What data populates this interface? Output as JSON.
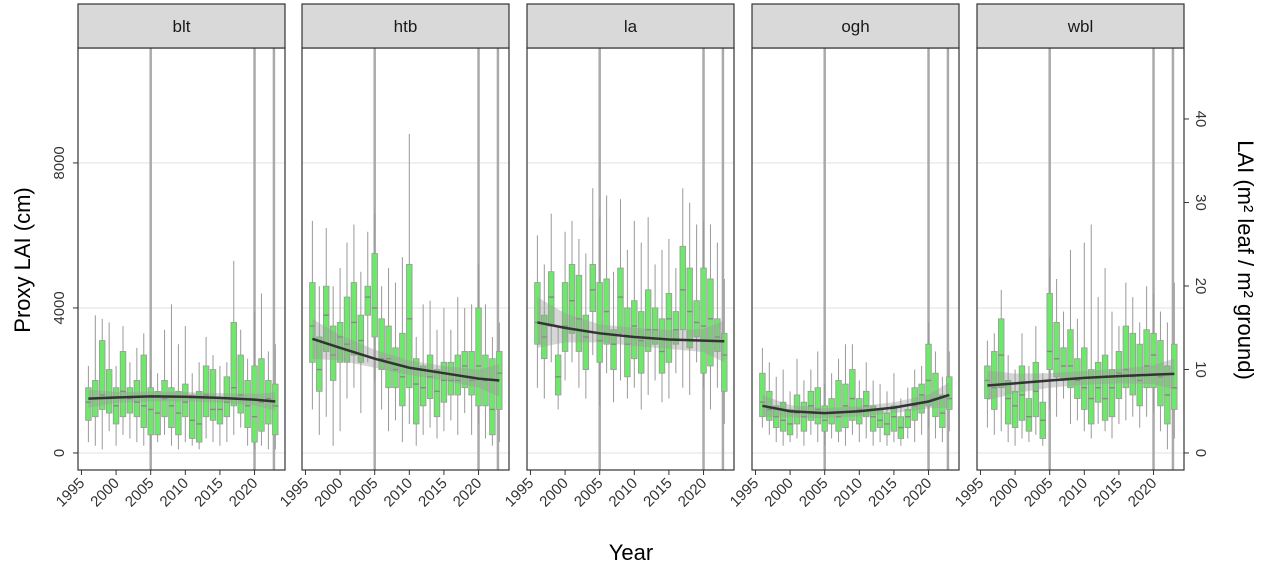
{
  "chart_data": {
    "type": "box",
    "xlabel": "Year",
    "ylabel": "Proxy LAI (cm)",
    "y2label": "LAI (m² leaf / m² ground)",
    "x": [
      1996,
      1997,
      1998,
      1999,
      2000,
      2001,
      2002,
      2003,
      2004,
      2005,
      2006,
      2007,
      2008,
      2009,
      2010,
      2011,
      2012,
      2013,
      2014,
      2015,
      2016,
      2017,
      2018,
      2019,
      2020,
      2021,
      2022,
      2023
    ],
    "xlim": [
      1994.5,
      2024.4
    ],
    "xticks": [
      1995,
      2000,
      2005,
      2010,
      2015,
      2020
    ],
    "ylim": [
      -470,
      11170
    ],
    "yticks": [
      0,
      4000,
      8000
    ],
    "y2lim": [
      -2.04,
      48.5
    ],
    "y2ticks": [
      0,
      10,
      20,
      30,
      40
    ],
    "vlines": [
      2005,
      2020,
      2022.8
    ],
    "grid": true,
    "box_color": "#6ee86a",
    "trend_x": [
      1996,
      2000,
      2005,
      2010,
      2015,
      2020,
      2023
    ],
    "facets": [
      {
        "title": "blt",
        "boxes": [
          [
            300,
            900,
            1400,
            1800,
            2400
          ],
          [
            200,
            1000,
            1500,
            2000,
            3800
          ],
          [
            100,
            1200,
            1600,
            3100,
            3700
          ],
          [
            600,
            1100,
            1500,
            2300,
            3600
          ],
          [
            200,
            800,
            1300,
            1800,
            2400
          ],
          [
            500,
            1000,
            1700,
            2800,
            3500
          ],
          [
            400,
            1100,
            1500,
            1800,
            2500
          ],
          [
            300,
            1000,
            1400,
            2000,
            2900
          ],
          [
            200,
            700,
            1300,
            2700,
            3300
          ],
          [
            100,
            500,
            1200,
            1800,
            2300
          ],
          [
            300,
            500,
            1100,
            1700,
            2200
          ],
          [
            500,
            1000,
            1500,
            2000,
            3400
          ],
          [
            200,
            700,
            1300,
            1800,
            4100
          ],
          [
            100,
            500,
            1100,
            1700,
            3000
          ],
          [
            300,
            1000,
            1400,
            1900,
            3500
          ],
          [
            200,
            400,
            900,
            1600,
            2200
          ],
          [
            100,
            300,
            800,
            1700,
            2500
          ],
          [
            400,
            1000,
            1600,
            2400,
            3200
          ],
          [
            300,
            900,
            1200,
            2300,
            2700
          ],
          [
            200,
            800,
            1200,
            1500,
            2400
          ],
          [
            300,
            1000,
            1400,
            2100,
            2500
          ],
          [
            500,
            1300,
            1800,
            3600,
            5300
          ],
          [
            700,
            1100,
            1600,
            2700,
            3400
          ],
          [
            200,
            700,
            1300,
            2000,
            2600
          ],
          [
            100,
            300,
            1000,
            2400,
            3900
          ],
          [
            200,
            600,
            1400,
            2600,
            4400
          ],
          [
            100,
            800,
            1500,
            2000,
            2800
          ],
          [
            100,
            500,
            1300,
            1900,
            3000
          ]
        ],
        "trend": [
          1500,
          1530,
          1560,
          1550,
          1520,
          1470,
          1420
        ],
        "trend_lower": [
          1250,
          1380,
          1420,
          1420,
          1390,
          1310,
          1170
        ],
        "trend_upper": [
          1750,
          1680,
          1700,
          1680,
          1650,
          1630,
          1670
        ]
      },
      {
        "title": "htb",
        "boxes": [
          [
            1200,
            2500,
            3500,
            4700,
            6400
          ],
          [
            500,
            1700,
            2300,
            3200,
            4600
          ],
          [
            1000,
            2800,
            3800,
            4600,
            6200
          ],
          [
            200,
            2000,
            2700,
            3500,
            4600
          ],
          [
            600,
            2500,
            3200,
            3600,
            5100
          ],
          [
            1500,
            2500,
            3000,
            4300,
            5800
          ],
          [
            1800,
            2700,
            3600,
            4700,
            6300
          ],
          [
            1100,
            2500,
            3100,
            3800,
            5000
          ],
          [
            2500,
            3800,
            4300,
            4600,
            6100
          ],
          [
            2000,
            3200,
            4000,
            5500,
            6600
          ],
          [
            1200,
            2300,
            2600,
            3700,
            4600
          ],
          [
            600,
            1800,
            2600,
            3500,
            5100
          ],
          [
            900,
            1800,
            2300,
            2900,
            4700
          ],
          [
            300,
            1300,
            2100,
            3300,
            5400
          ],
          [
            800,
            1800,
            3700,
            5200,
            8800
          ],
          [
            200,
            800,
            1900,
            2600,
            3200
          ],
          [
            500,
            1300,
            1800,
            2400,
            4100
          ],
          [
            700,
            1500,
            2100,
            2700,
            4200
          ],
          [
            400,
            1000,
            1700,
            2300,
            3400
          ],
          [
            600,
            1400,
            2000,
            2500,
            4000
          ],
          [
            900,
            1600,
            2000,
            2500,
            3400
          ],
          [
            500,
            1600,
            2000,
            2700,
            4300
          ],
          [
            1100,
            1800,
            2400,
            2800,
            4000
          ],
          [
            500,
            1600,
            2000,
            2800,
            4100
          ],
          [
            800,
            1300,
            2400,
            4000,
            5200
          ],
          [
            400,
            1300,
            2000,
            2700,
            4100
          ],
          [
            200,
            500,
            1200,
            2600,
            3200
          ],
          [
            300,
            1200,
            2200,
            2800,
            3600
          ]
        ],
        "trend": [
          3150,
          2900,
          2600,
          2350,
          2200,
          2050,
          2000
        ],
        "trend_lower": [
          2600,
          2550,
          2350,
          2150,
          2000,
          1800,
          1550
        ],
        "trend_upper": [
          3700,
          3250,
          2850,
          2550,
          2400,
          2300,
          2450
        ]
      },
      {
        "title": "la",
        "boxes": [
          [
            1800,
            3000,
            3600,
            4700,
            6000
          ],
          [
            1500,
            2600,
            3200,
            3800,
            5200
          ],
          [
            2500,
            3500,
            4300,
            5000,
            6600
          ],
          [
            1200,
            1600,
            2100,
            2700,
            3500
          ],
          [
            2000,
            2800,
            3500,
            4700,
            6100
          ],
          [
            2500,
            3300,
            4200,
            5200,
            6400
          ],
          [
            1800,
            2800,
            3700,
            4900,
            5900
          ],
          [
            1500,
            2300,
            3200,
            3800,
            5500
          ],
          [
            2700,
            3900,
            4500,
            5200,
            7300
          ],
          [
            1300,
            2500,
            3100,
            4700,
            6500
          ],
          [
            2200,
            3000,
            3900,
            4800,
            7100
          ],
          [
            1400,
            2300,
            3000,
            3400,
            5000
          ],
          [
            2000,
            3300,
            4300,
            5100,
            7000
          ],
          [
            1500,
            2100,
            3000,
            4000,
            5600
          ],
          [
            1800,
            2600,
            3500,
            4200,
            6400
          ],
          [
            1200,
            2200,
            3100,
            3900,
            5800
          ],
          [
            1600,
            2800,
            3400,
            4500,
            6500
          ],
          [
            2000,
            3000,
            3400,
            4000,
            5200
          ],
          [
            1400,
            2200,
            2800,
            3700,
            5600
          ],
          [
            1500,
            2500,
            3700,
            4400,
            5900
          ],
          [
            2200,
            3000,
            3400,
            3900,
            5100
          ],
          [
            1800,
            3400,
            4500,
            5700,
            7300
          ],
          [
            1600,
            2900,
            3900,
            5100,
            6900
          ],
          [
            2500,
            3200,
            3600,
            4200,
            6300
          ],
          [
            1800,
            2200,
            3500,
            5100,
            6400
          ],
          [
            1200,
            2400,
            3700,
            4800,
            6300
          ],
          [
            1800,
            2800,
            3200,
            3700,
            5800
          ],
          [
            800,
            1700,
            2700,
            3300,
            4800
          ]
        ],
        "trend": [
          3600,
          3450,
          3300,
          3200,
          3130,
          3100,
          3080
        ],
        "trend_lower": [
          2900,
          3050,
          3050,
          2950,
          2870,
          2780,
          2500
        ],
        "trend_upper": [
          4300,
          3850,
          3550,
          3450,
          3390,
          3420,
          3660
        ]
      },
      {
        "title": "ogh",
        "boxes": [
          [
            700,
            1000,
            1400,
            2200,
            2900
          ],
          [
            500,
            900,
            1200,
            1700,
            2500
          ],
          [
            300,
            700,
            1000,
            1300,
            2100
          ],
          [
            200,
            600,
            900,
            1400,
            2300
          ],
          [
            300,
            500,
            800,
            1200,
            1700
          ],
          [
            400,
            800,
            1100,
            1600,
            2600
          ],
          [
            200,
            600,
            1000,
            1400,
            2000
          ],
          [
            500,
            900,
            1300,
            1700,
            2300
          ],
          [
            300,
            800,
            1200,
            1800,
            2800
          ],
          [
            200,
            600,
            900,
            1300,
            1900
          ],
          [
            400,
            800,
            1100,
            1500,
            2200
          ],
          [
            300,
            600,
            1000,
            2000,
            2600
          ],
          [
            200,
            700,
            1300,
            1900,
            3000
          ],
          [
            500,
            900,
            1500,
            2300,
            3000
          ],
          [
            300,
            800,
            1200,
            1500,
            2000
          ],
          [
            400,
            1000,
            1300,
            1700,
            2500
          ],
          [
            200,
            600,
            1000,
            1300,
            2000
          ],
          [
            300,
            700,
            900,
            1200,
            1900
          ],
          [
            200,
            500,
            800,
            1100,
            1700
          ],
          [
            300,
            600,
            1000,
            1300,
            2200
          ],
          [
            200,
            400,
            700,
            1000,
            1500
          ],
          [
            400,
            700,
            1000,
            1200,
            1800
          ],
          [
            300,
            900,
            1300,
            1800,
            2300
          ],
          [
            500,
            1100,
            1600,
            1900,
            2400
          ],
          [
            700,
            1300,
            2000,
            3000,
            3600
          ],
          [
            400,
            1000,
            1500,
            2200,
            2800
          ],
          [
            300,
            700,
            1100,
            1600,
            2100
          ],
          [
            600,
            1200,
            1500,
            2100,
            2800
          ]
        ],
        "trend": [
          1300,
          1150,
          1100,
          1150,
          1250,
          1420,
          1600
        ],
        "trend_lower": [
          1000,
          980,
          960,
          1010,
          1100,
          1230,
          1250
        ],
        "trend_upper": [
          1600,
          1320,
          1240,
          1290,
          1400,
          1610,
          1950
        ]
      },
      {
        "title": "wbl",
        "boxes": [
          [
            700,
            1500,
            2000,
            2400,
            3100
          ],
          [
            500,
            1200,
            1800,
            2800,
            3300
          ],
          [
            600,
            1800,
            2700,
            3700,
            4500
          ],
          [
            300,
            800,
            1500,
            2000,
            2700
          ],
          [
            200,
            700,
            1300,
            1700,
            2300
          ],
          [
            400,
            900,
            1600,
            2400,
            3300
          ],
          [
            300,
            600,
            1000,
            1500,
            2400
          ],
          [
            500,
            1000,
            1700,
            2500,
            3500
          ],
          [
            200,
            400,
            900,
            1400,
            2200
          ],
          [
            1200,
            2300,
            2800,
            4400,
            5400
          ],
          [
            1000,
            2100,
            2600,
            3600,
            4800
          ],
          [
            1500,
            2000,
            2400,
            2900,
            3900
          ],
          [
            800,
            1800,
            2400,
            3400,
            5600
          ],
          [
            900,
            1500,
            2000,
            2600,
            3700
          ],
          [
            600,
            1200,
            1800,
            2900,
            5800
          ],
          [
            400,
            800,
            1500,
            2300,
            6300
          ],
          [
            800,
            1400,
            1800,
            2500,
            4300
          ],
          [
            600,
            900,
            1500,
            2700,
            5100
          ],
          [
            400,
            1000,
            1800,
            2300,
            3900
          ],
          [
            800,
            1500,
            2200,
            2800,
            3500
          ],
          [
            900,
            1800,
            2300,
            3500,
            4700
          ],
          [
            1000,
            1600,
            2100,
            3300,
            4300
          ],
          [
            700,
            1300,
            2000,
            3000,
            3600
          ],
          [
            1000,
            1800,
            2400,
            3400,
            4600
          ],
          [
            1100,
            1800,
            2700,
            3300,
            4400
          ],
          [
            600,
            1300,
            2100,
            3100,
            3900
          ],
          [
            100,
            800,
            1600,
            2400,
            3600
          ],
          [
            400,
            1200,
            1800,
            3000,
            4700
          ]
        ],
        "trend": [
          1860,
          1920,
          2000,
          2070,
          2120,
          2160,
          2180
        ],
        "trend_lower": [
          1450,
          1650,
          1800,
          1880,
          1920,
          1900,
          1750
        ],
        "trend_upper": [
          2270,
          2190,
          2200,
          2260,
          2320,
          2420,
          2610
        ]
      }
    ]
  }
}
